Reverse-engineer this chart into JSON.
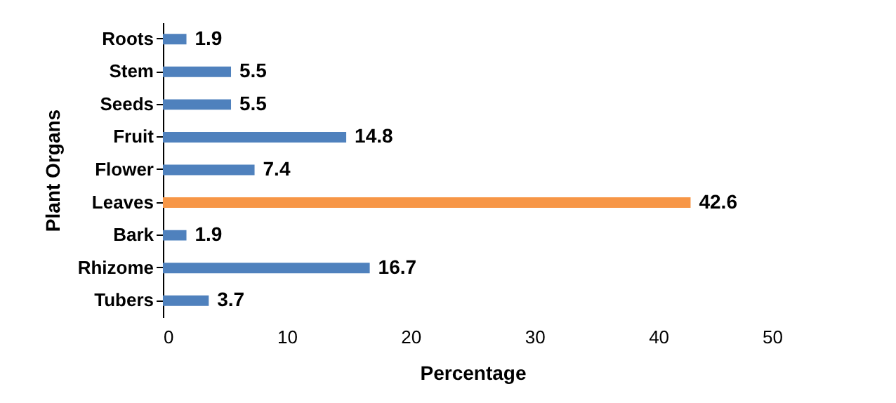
{
  "chart_data": {
    "type": "bar",
    "orientation": "horizontal",
    "xlabel": "Percentage",
    "ylabel": "Plant Organs",
    "categories": [
      "Roots",
      "Stem",
      "Seeds",
      "Fruit",
      "Flower",
      "Leaves",
      "Bark",
      "Rhizome",
      "Tubers"
    ],
    "values": [
      1.9,
      5.5,
      5.5,
      14.8,
      7.4,
      42.6,
      1.9,
      16.7,
      3.7
    ],
    "colors": [
      "#4f81bd",
      "#4f81bd",
      "#4f81bd",
      "#4f81bd",
      "#4f81bd",
      "#f79646",
      "#4f81bd",
      "#4f81bd",
      "#4f81bd"
    ],
    "xlim": [
      0,
      50
    ],
    "xticks": [
      0,
      10,
      20,
      30,
      40,
      50
    ],
    "data_labels": true,
    "grid": false
  }
}
